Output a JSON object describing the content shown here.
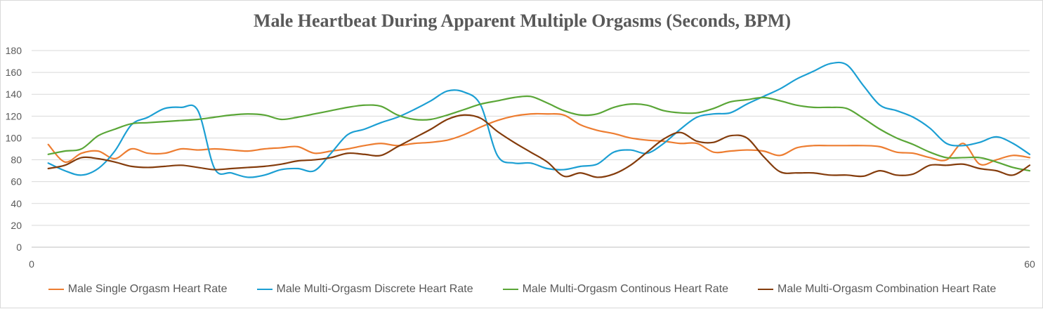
{
  "chart_data": {
    "type": "line",
    "title": "Male Heartbeat During Apparent Multiple Orgasms (Seconds, BPM)",
    "xlabel": "",
    "ylabel": "",
    "xlim": [
      0,
      60
    ],
    "ylim": [
      0,
      180
    ],
    "x_ticks": [
      "0",
      "60"
    ],
    "y_ticks": [
      "0",
      "20",
      "40",
      "60",
      "80",
      "100",
      "120",
      "140",
      "160",
      "180"
    ],
    "grid": "horizontal",
    "legend_position": "bottom",
    "x": [
      1,
      2,
      3,
      4,
      5,
      6,
      7,
      8,
      9,
      10,
      11,
      12,
      13,
      14,
      15,
      16,
      17,
      18,
      19,
      20,
      21,
      22,
      23,
      24,
      25,
      26,
      27,
      28,
      29,
      30,
      31,
      32,
      33,
      34,
      35,
      36,
      37,
      38,
      39,
      40,
      41,
      42,
      43,
      44,
      45,
      46,
      47,
      48,
      49,
      50,
      51,
      52,
      53,
      54,
      55,
      56,
      57,
      58,
      59,
      60
    ],
    "series": [
      {
        "name": "Male Single Orgasm Heart Rate",
        "color": "#ed7d31",
        "values": [
          94,
          78,
          86,
          88,
          81,
          90,
          86,
          86,
          90,
          89,
          90,
          89,
          88,
          90,
          91,
          92,
          86,
          88,
          90,
          93,
          95,
          93,
          95,
          96,
          98,
          103,
          110,
          116,
          120,
          122,
          122,
          121,
          112,
          107,
          104,
          100,
          98,
          97,
          95,
          95,
          87,
          88,
          89,
          88,
          84,
          91,
          93,
          93,
          93,
          93,
          92,
          87,
          86,
          82,
          80,
          95,
          76,
          80,
          84,
          82
        ]
      },
      {
        "name": "Male Multi-Orgasm Discrete Heart Rate",
        "color": "#1c9fd3",
        "values": [
          77,
          70,
          66,
          72,
          88,
          112,
          119,
          127,
          128,
          125,
          72,
          68,
          64,
          66,
          71,
          72,
          70,
          86,
          103,
          108,
          114,
          119,
          126,
          134,
          143,
          142,
          130,
          84,
          77,
          77,
          72,
          71,
          74,
          76,
          87,
          89,
          86,
          95,
          108,
          119,
          122,
          123,
          131,
          138,
          145,
          154,
          161,
          168,
          167,
          148,
          130,
          125,
          119,
          109,
          95,
          93,
          96,
          101,
          95,
          85
        ]
      },
      {
        "name": "Male Multi-Orgasm Continous Heart Rate",
        "color": "#5aa637",
        "values": [
          85,
          88,
          90,
          102,
          108,
          113,
          114,
          115,
          116,
          117,
          119,
          121,
          122,
          121,
          117,
          119,
          122,
          125,
          128,
          130,
          129,
          121,
          117,
          117,
          121,
          126,
          131,
          134,
          137,
          138,
          132,
          125,
          121,
          122,
          128,
          131,
          130,
          125,
          123,
          123,
          127,
          133,
          135,
          137,
          134,
          130,
          128,
          128,
          127,
          118,
          108,
          100,
          94,
          87,
          82,
          82,
          82,
          78,
          73,
          70
        ]
      },
      {
        "name": "Male Multi-Orgasm Combination Heart Rate",
        "color": "#843c0c",
        "values": [
          72,
          75,
          82,
          81,
          78,
          74,
          73,
          74,
          75,
          73,
          71,
          72,
          73,
          74,
          76,
          79,
          80,
          82,
          86,
          85,
          84,
          92,
          100,
          108,
          117,
          121,
          118,
          106,
          96,
          87,
          78,
          65,
          68,
          64,
          67,
          75,
          87,
          99,
          105,
          97,
          96,
          102,
          100,
          83,
          69,
          68,
          68,
          66,
          66,
          65,
          70,
          66,
          67,
          75,
          75,
          76,
          72,
          70,
          66,
          75
        ]
      }
    ]
  }
}
